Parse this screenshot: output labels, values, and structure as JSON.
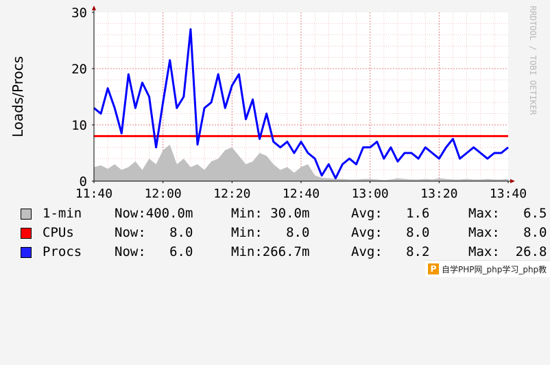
{
  "chart_data": {
    "type": "line",
    "ylabel": "Loads/Procs",
    "side_label": "RRDTOOL / TOBI OETIKER",
    "ylim": [
      0,
      30
    ],
    "yticks": [
      "0",
      "10",
      "20",
      "30"
    ],
    "xticks": [
      "11:40",
      "12:00",
      "12:20",
      "12:40",
      "13:00",
      "13:20",
      "13:40"
    ],
    "grid": true,
    "series": [
      {
        "name": "1-min",
        "type": "area",
        "color": "#c0c0c0",
        "x": [
          "11:40",
          "11:42",
          "11:44",
          "11:46",
          "11:48",
          "11:50",
          "11:52",
          "11:54",
          "11:56",
          "11:58",
          "12:00",
          "12:02",
          "12:04",
          "12:06",
          "12:08",
          "12:10",
          "12:12",
          "12:14",
          "12:16",
          "12:18",
          "12:20",
          "12:22",
          "12:24",
          "12:26",
          "12:28",
          "12:30",
          "12:32",
          "12:34",
          "12:36",
          "12:38",
          "12:40",
          "12:42",
          "12:44",
          "12:46",
          "12:48",
          "12:50",
          "12:52",
          "12:54",
          "12:56",
          "12:58",
          "13:00",
          "13:02",
          "13:04",
          "13:06",
          "13:08",
          "13:10",
          "13:12",
          "13:14",
          "13:16",
          "13:18",
          "13:20",
          "13:22",
          "13:24",
          "13:26",
          "13:28",
          "13:30",
          "13:32",
          "13:34",
          "13:36",
          "13:38",
          "13:40"
        ],
        "values": [
          2.5,
          2.8,
          2.2,
          3.0,
          2.0,
          2.5,
          3.5,
          2.0,
          4.0,
          3.0,
          5.5,
          6.5,
          3.0,
          4.0,
          2.5,
          3.0,
          2.0,
          3.5,
          4.0,
          5.5,
          6.0,
          4.5,
          3.0,
          3.5,
          5.0,
          4.5,
          3.0,
          2.0,
          2.5,
          1.5,
          2.5,
          3.0,
          1.0,
          0.6,
          0.5,
          0.4,
          0.4,
          0.3,
          0.3,
          0.4,
          0.4,
          0.3,
          0.2,
          0.3,
          0.5,
          0.4,
          0.3,
          0.3,
          0.4,
          0.3,
          0.5,
          0.4,
          0.3,
          0.3,
          0.4,
          0.3,
          0.3,
          0.4,
          0.3,
          0.3,
          0.4
        ]
      },
      {
        "name": "CPUs",
        "type": "line",
        "color": "#ff0000",
        "x": [
          "11:40",
          "13:40"
        ],
        "values": [
          8,
          8
        ]
      },
      {
        "name": "Procs",
        "type": "line",
        "color": "#0000ff",
        "x": [
          "11:40",
          "11:42",
          "11:44",
          "11:46",
          "11:48",
          "11:50",
          "11:52",
          "11:54",
          "11:56",
          "11:58",
          "12:00",
          "12:02",
          "12:04",
          "12:06",
          "12:08",
          "12:10",
          "12:12",
          "12:14",
          "12:16",
          "12:18",
          "12:20",
          "12:22",
          "12:24",
          "12:26",
          "12:28",
          "12:30",
          "12:32",
          "12:34",
          "12:36",
          "12:38",
          "12:40",
          "12:42",
          "12:44",
          "12:46",
          "12:48",
          "12:50",
          "12:52",
          "12:54",
          "12:56",
          "12:58",
          "13:00",
          "13:02",
          "13:04",
          "13:06",
          "13:08",
          "13:10",
          "13:12",
          "13:14",
          "13:16",
          "13:18",
          "13:20",
          "13:22",
          "13:24",
          "13:26",
          "13:28",
          "13:30",
          "13:32",
          "13:34",
          "13:36",
          "13:38",
          "13:40"
        ],
        "values": [
          13,
          12,
          16.5,
          13,
          8.5,
          19,
          13,
          17.5,
          15,
          6,
          14,
          21.5,
          13,
          15,
          27,
          6.5,
          13,
          14,
          19,
          13,
          17,
          19,
          11,
          14.5,
          7.5,
          12,
          7,
          6,
          7,
          5,
          7,
          5,
          4,
          1,
          3,
          0.5,
          3,
          4,
          3,
          6,
          6,
          7,
          4,
          6,
          3.5,
          5,
          5,
          4,
          6,
          5,
          4,
          6,
          7.5,
          4,
          5,
          6,
          5,
          4,
          5,
          5,
          6
        ]
      }
    ]
  },
  "legend": {
    "rows": [
      {
        "label": "1-min",
        "color": "#c0c0c0",
        "now": "Now:400.0m",
        "min": "Min: 30.0m",
        "avg": "Avg:   1.6",
        "max": "Max:   6.5"
      },
      {
        "label": "CPUs",
        "color": "#ff0000",
        "now": "Now:   8.0",
        "min": "Min:   8.0",
        "avg": "Avg:   8.0",
        "max": "Max:   8.0"
      },
      {
        "label": "Procs",
        "color": "#2020ff",
        "now": "Now:   6.0",
        "min": "Min:266.7m",
        "avg": "Avg:   8.2",
        "max": "Max:  26.8"
      }
    ]
  },
  "watermark": {
    "logo": "P",
    "text": "自学PHP网_php学习_php教"
  }
}
